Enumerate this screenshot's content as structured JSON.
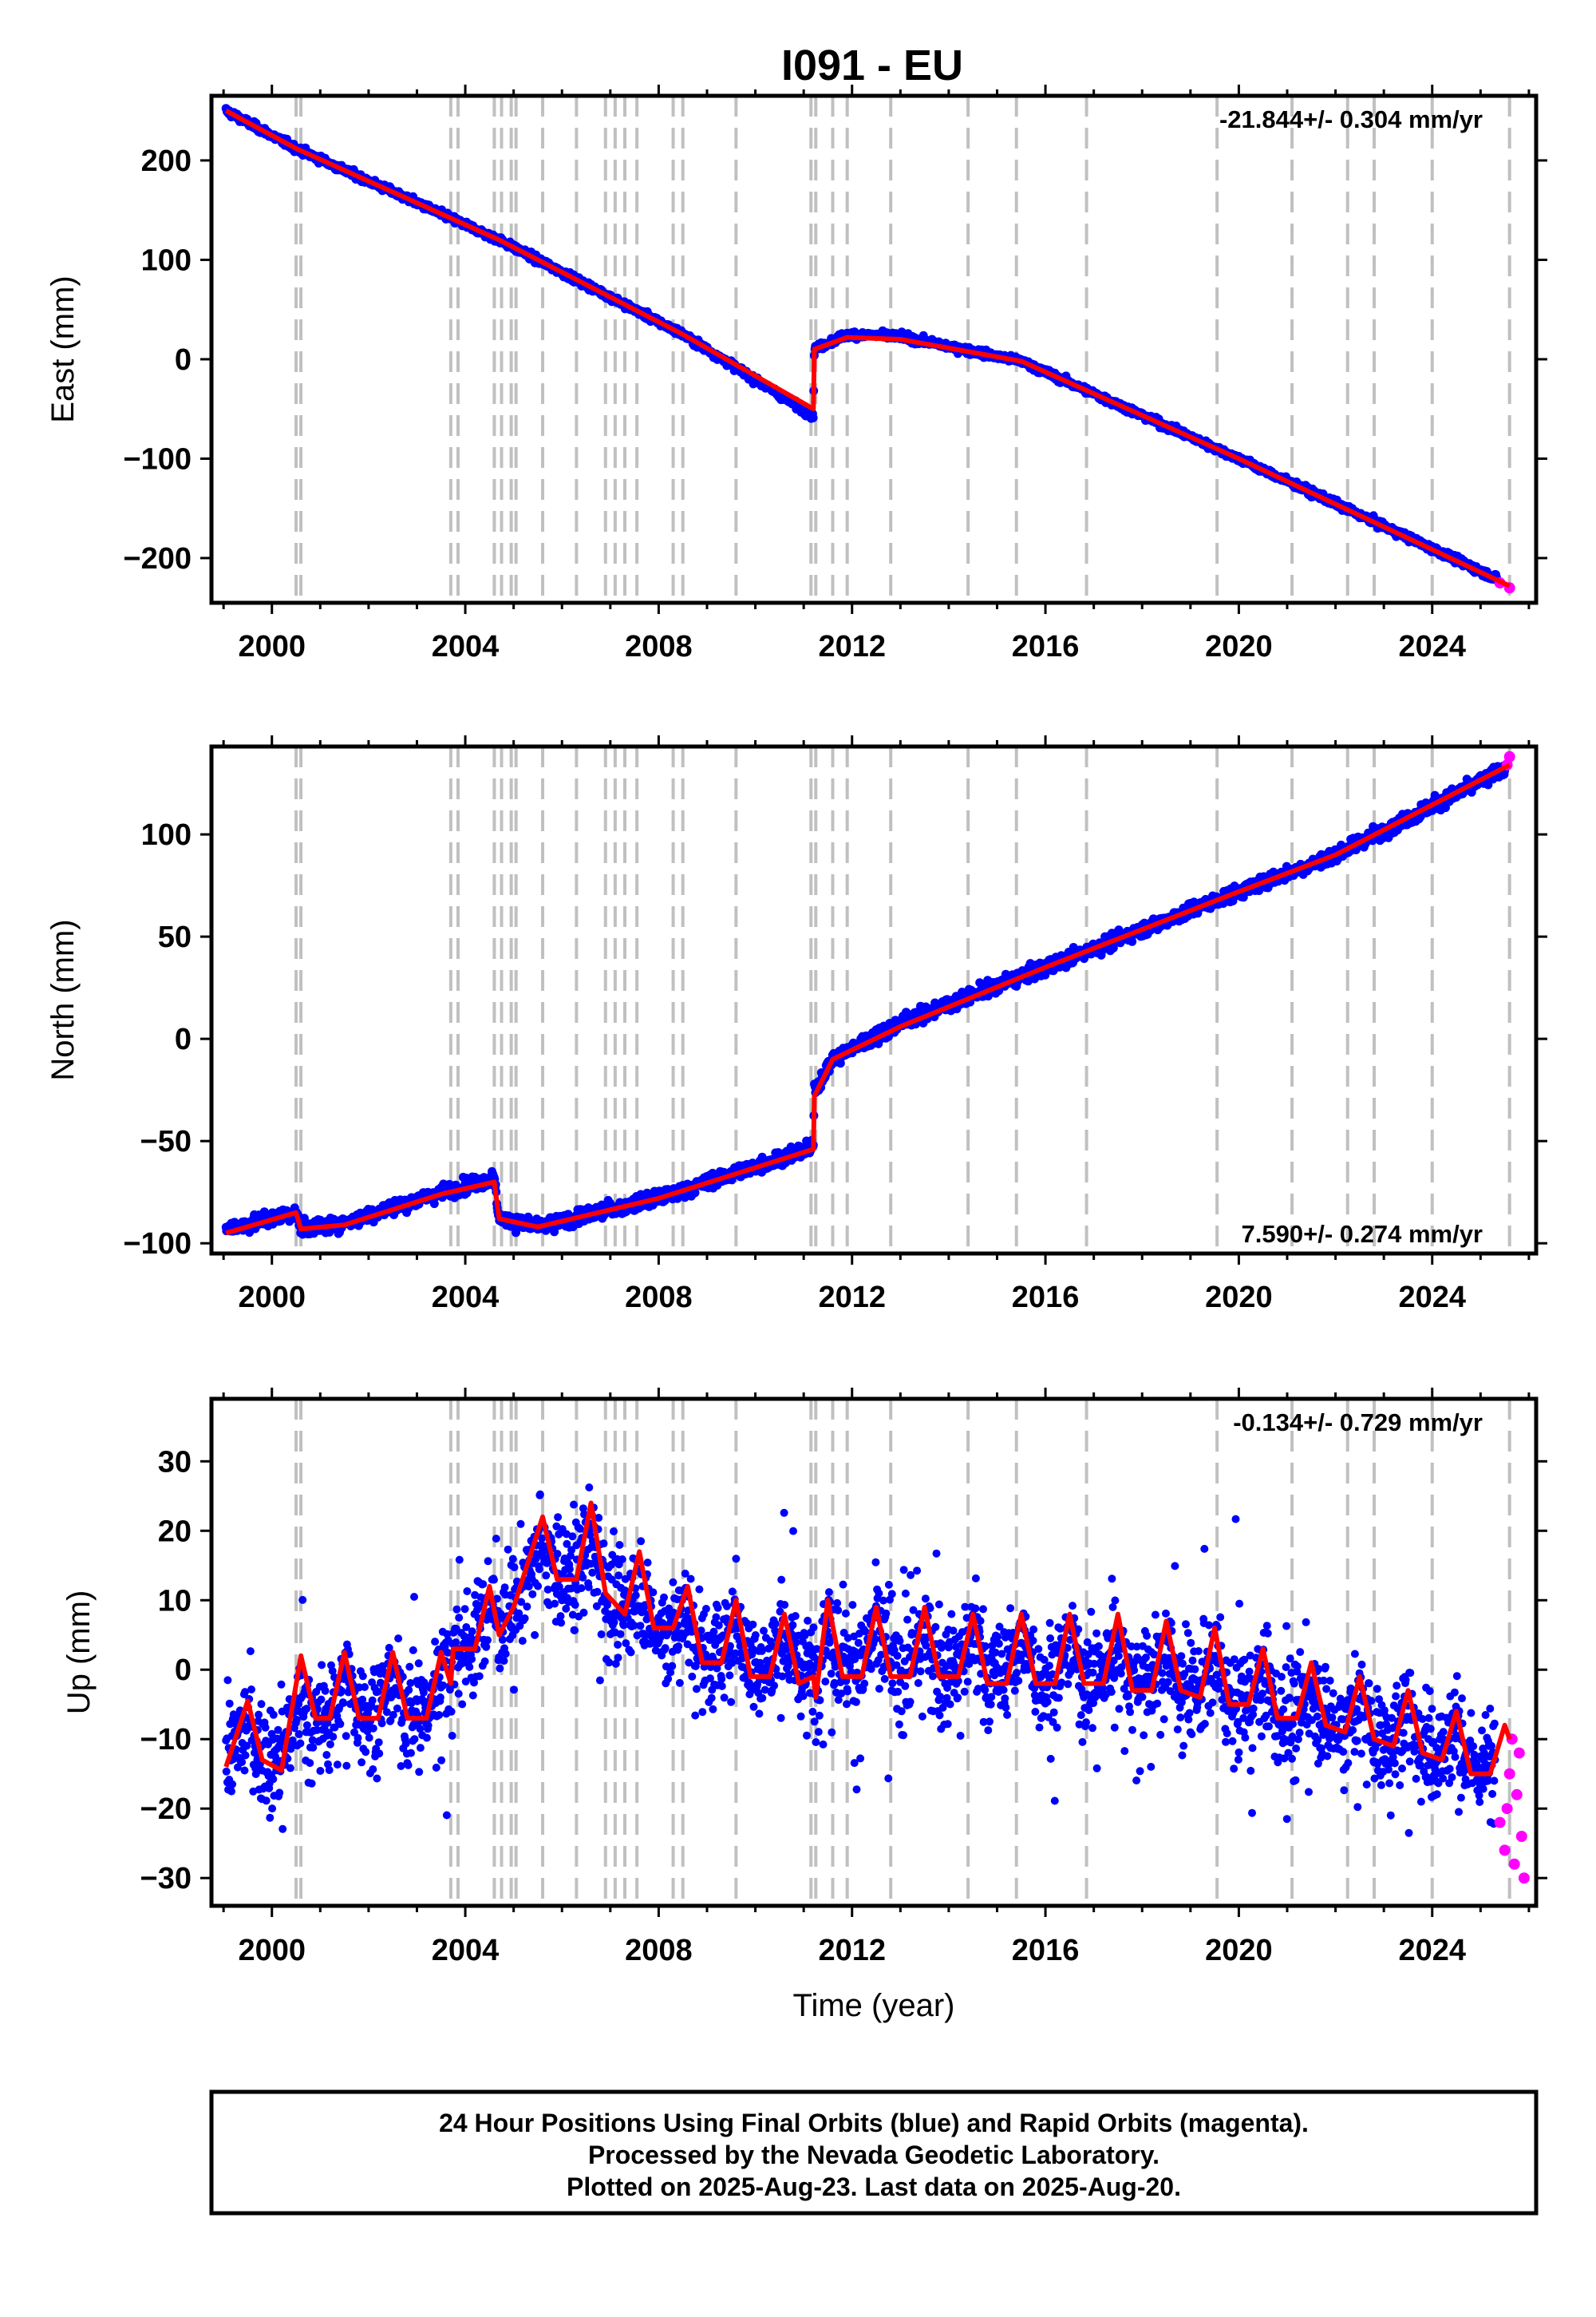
{
  "figure": {
    "title": "I091 - EU",
    "footer_lines": [
      "24 Hour Positions Using Final Orbits (blue) and Rapid Orbits (magenta).",
      "Processed by the Nevada Geodetic Laboratory.",
      "Plotted on 2025-Aug-23. Last data on 2025-Aug-20."
    ]
  },
  "colors": {
    "final_orbits": "#0000ff",
    "rapid_orbits": "#ff00ff",
    "model": "#ff0000",
    "event_lines": "#c0c0c0",
    "axes": "#000000"
  },
  "chart_data": [
    {
      "type": "scatter",
      "ylabel": "East (mm)",
      "xlabel": "",
      "xlim": [
        1998.75,
        2026.15
      ],
      "ylim": [
        -245,
        265
      ],
      "xticks": [
        2000,
        2004,
        2008,
        2012,
        2016,
        2020,
        2024
      ],
      "yticks": [
        -200,
        -100,
        0,
        100,
        200
      ],
      "ytick_labels": [
        "−200",
        "−100",
        "0",
        "100",
        "200"
      ],
      "rate_text": "-21.844+/- 0.304 mm/yr",
      "rate_position": "top-right",
      "noise": 2.5,
      "seasonal": false,
      "series_final": [
        [
          1999.05,
          250
        ],
        [
          2000.5,
          212
        ],
        [
          2004.7,
          120
        ],
        [
          2008.5,
          25
        ],
        [
          2011.2,
          -57
        ],
        [
          2011.22,
          10
        ],
        [
          2011.9,
          25
        ],
        [
          2013,
          23
        ],
        [
          2015.5,
          -2
        ],
        [
          2020,
          -100
        ],
        [
          2025.3,
          -220
        ],
        [
          2025.35,
          -222
        ]
      ],
      "series_rapid": [
        [
          2025.4,
          -225
        ],
        [
          2025.6,
          -230
        ]
      ],
      "model": [
        [
          1999.05,
          250
        ],
        [
          2000.5,
          212
        ],
        [
          2004.7,
          120
        ],
        [
          2008.5,
          25
        ],
        [
          2011.2,
          -50
        ],
        [
          2011.22,
          10
        ],
        [
          2011.9,
          22
        ],
        [
          2013,
          20
        ],
        [
          2015.5,
          -2
        ],
        [
          2020,
          -100
        ],
        [
          2025.6,
          -228
        ]
      ]
    },
    {
      "type": "scatter",
      "ylabel": "North (mm)",
      "xlabel": "",
      "xlim": [
        1998.75,
        2026.15
      ],
      "ylim": [
        -105,
        143
      ],
      "xticks": [
        2000,
        2004,
        2008,
        2012,
        2016,
        2020,
        2024
      ],
      "yticks": [
        -100,
        -50,
        0,
        50,
        100
      ],
      "ytick_labels": [
        "−100",
        "−50",
        "0",
        "50",
        "100"
      ],
      "rate_text": "7.590+/- 0.274 mm/yr",
      "rate_position": "bottom-right",
      "noise": 2.5,
      "seasonal": false,
      "series_final": [
        [
          1999.05,
          -93
        ],
        [
          2000.5,
          -85
        ],
        [
          2000.6,
          -93
        ],
        [
          2001.5,
          -90
        ],
        [
          2003.5,
          -75
        ],
        [
          2004.6,
          -68
        ],
        [
          2004.7,
          -88
        ],
        [
          2005.5,
          -92
        ],
        [
          2008,
          -78
        ],
        [
          2011.2,
          -53
        ],
        [
          2011.22,
          -25
        ],
        [
          2011.6,
          -10
        ],
        [
          2013,
          8
        ],
        [
          2016,
          35
        ],
        [
          2020,
          72
        ],
        [
          2022,
          90
        ],
        [
          2025.5,
          132
        ]
      ],
      "series_rapid": [
        [
          2025.55,
          134
        ],
        [
          2025.6,
          138
        ]
      ],
      "model": [
        [
          1999.05,
          -95
        ],
        [
          2000.5,
          -85
        ],
        [
          2000.6,
          -93
        ],
        [
          2001.5,
          -91
        ],
        [
          2003.5,
          -76
        ],
        [
          2004.6,
          -70
        ],
        [
          2004.7,
          -88
        ],
        [
          2005.5,
          -92
        ],
        [
          2008,
          -78
        ],
        [
          2011.2,
          -54
        ],
        [
          2011.22,
          -28
        ],
        [
          2011.6,
          -10
        ],
        [
          2013,
          6
        ],
        [
          2016,
          35
        ],
        [
          2020,
          72
        ],
        [
          2022,
          90
        ],
        [
          2025.6,
          134
        ]
      ]
    },
    {
      "type": "scatter",
      "ylabel": "Up (mm)",
      "xlabel": "Time (year)",
      "xlim": [
        1998.75,
        2026.15
      ],
      "ylim": [
        -34,
        39
      ],
      "xticks": [
        2000,
        2004,
        2008,
        2012,
        2016,
        2020,
        2024
      ],
      "yticks": [
        -30,
        -20,
        -10,
        0,
        10,
        20,
        30
      ],
      "ytick_labels": [
        "−30",
        "−20",
        "−10",
        "0",
        "10",
        "20",
        "30"
      ],
      "rate_text": "-0.134+/- 0.729 mm/yr",
      "rate_position": "top-right",
      "noise": 5,
      "seasonal": true,
      "series_final": [
        [
          1999.05,
          -12
        ],
        [
          2000.5,
          -12
        ],
        [
          2001.5,
          -5
        ],
        [
          2003.3,
          -5
        ],
        [
          2004,
          4
        ],
        [
          2005,
          10
        ],
        [
          2006,
          15
        ],
        [
          2007,
          10
        ],
        [
          2008,
          5
        ],
        [
          2009,
          3
        ],
        [
          2011,
          2
        ],
        [
          2013,
          2
        ],
        [
          2016,
          0
        ],
        [
          2018,
          0
        ],
        [
          2020,
          -5
        ],
        [
          2022,
          -8
        ],
        [
          2024,
          -11
        ],
        [
          2025.3,
          -13
        ]
      ],
      "series_rapid": [
        [
          2025.4,
          -22
        ],
        [
          2025.5,
          -26
        ],
        [
          2025.55,
          -20
        ],
        [
          2025.6,
          -15
        ],
        [
          2025.65,
          -10
        ],
        [
          2025.7,
          -28
        ],
        [
          2025.75,
          -18
        ],
        [
          2025.8,
          -12
        ],
        [
          2025.85,
          -24
        ],
        [
          2025.9,
          -30
        ]
      ],
      "model": [
        [
          1999.05,
          -14
        ],
        [
          1999.5,
          -4.5
        ],
        [
          1999.8,
          -13
        ],
        [
          2000.2,
          -14.5
        ],
        [
          2000.6,
          2
        ],
        [
          2000.9,
          -7
        ],
        [
          2001.2,
          -7
        ],
        [
          2001.5,
          2.5
        ],
        [
          2001.8,
          -7
        ],
        [
          2002.2,
          -7
        ],
        [
          2002.5,
          2.5
        ],
        [
          2002.8,
          -7
        ],
        [
          2003.2,
          -7
        ],
        [
          2003.5,
          2.5
        ],
        [
          2003.7,
          -2
        ],
        [
          2003.75,
          3
        ],
        [
          2004.2,
          3
        ],
        [
          2004.5,
          12
        ],
        [
          2004.7,
          5
        ],
        [
          2005,
          9
        ],
        [
          2005.6,
          22
        ],
        [
          2005.9,
          13
        ],
        [
          2006.3,
          13
        ],
        [
          2006.6,
          24
        ],
        [
          2006.9,
          11
        ],
        [
          2007.3,
          8
        ],
        [
          2007.6,
          17
        ],
        [
          2007.9,
          6
        ],
        [
          2008.3,
          6
        ],
        [
          2008.6,
          12
        ],
        [
          2008.9,
          1
        ],
        [
          2009.3,
          1
        ],
        [
          2009.6,
          10
        ],
        [
          2009.9,
          -1
        ],
        [
          2010.3,
          -1
        ],
        [
          2010.6,
          8
        ],
        [
          2010.9,
          -2
        ],
        [
          2011.2,
          -1
        ],
        [
          2011.25,
          -4
        ],
        [
          2011.5,
          10
        ],
        [
          2011.8,
          -1
        ],
        [
          2012.2,
          -1
        ],
        [
          2012.5,
          9
        ],
        [
          2012.8,
          -1
        ],
        [
          2013.2,
          -1
        ],
        [
          2013.5,
          9
        ],
        [
          2013.8,
          -1
        ],
        [
          2014.2,
          -1
        ],
        [
          2014.5,
          8
        ],
        [
          2014.8,
          -2
        ],
        [
          2015.2,
          -2
        ],
        [
          2015.5,
          8
        ],
        [
          2015.8,
          -2
        ],
        [
          2016.2,
          -2
        ],
        [
          2016.5,
          8
        ],
        [
          2016.8,
          -2
        ],
        [
          2017.2,
          -2
        ],
        [
          2017.5,
          8
        ],
        [
          2017.8,
          -3
        ],
        [
          2018.2,
          -3
        ],
        [
          2018.5,
          7
        ],
        [
          2018.8,
          -3
        ],
        [
          2019.2,
          -4
        ],
        [
          2019.5,
          6
        ],
        [
          2019.8,
          -5
        ],
        [
          2020.2,
          -5
        ],
        [
          2020.5,
          3
        ],
        [
          2020.8,
          -7
        ],
        [
          2021.2,
          -7
        ],
        [
          2021.5,
          1
        ],
        [
          2021.8,
          -8
        ],
        [
          2022.2,
          -9
        ],
        [
          2022.5,
          -1
        ],
        [
          2022.8,
          -10
        ],
        [
          2023.2,
          -11
        ],
        [
          2023.5,
          -3
        ],
        [
          2023.8,
          -12
        ],
        [
          2024.2,
          -13
        ],
        [
          2024.5,
          -6
        ],
        [
          2024.8,
          -15
        ],
        [
          2025.2,
          -15
        ],
        [
          2025.5,
          -8
        ],
        [
          2025.6,
          -10
        ]
      ]
    }
  ],
  "event_lines": {
    "heavy": [
      2000.55,
      2011.2
    ],
    "light": [
      2003.7,
      2003.85,
      2004.6,
      2004.75,
      2004.95,
      2005.05,
      2005.6,
      2006.3,
      2006.9,
      2007.1,
      2007.3,
      2007.55,
      2008.3,
      2008.5,
      2009.6,
      2011.6,
      2011.9,
      2012.8,
      2014.4,
      2015.4,
      2016.85,
      2019.55,
      2021.1,
      2022.25,
      2022.8,
      2024.0,
      2025.6
    ]
  }
}
